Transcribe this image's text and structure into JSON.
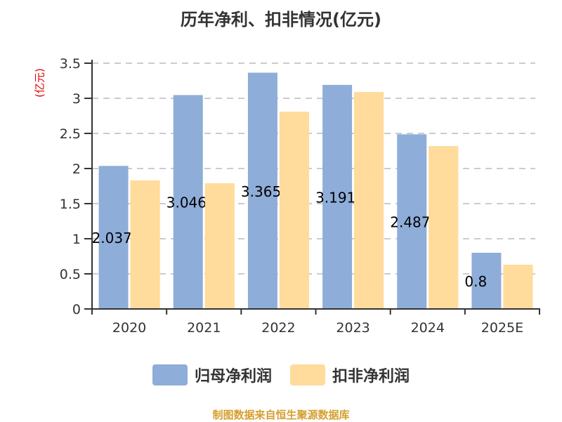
{
  "title": "历年净利、扣非情况(亿元)",
  "footer": "制图数据来自恒生聚源数据库",
  "colors": {
    "series1": "#8EADD9",
    "series2": "#FFDB9C",
    "axis": "#333333",
    "grid": "#cccccc",
    "ylabel": "#e00000",
    "footer": "#d4a030"
  },
  "legend": [
    {
      "label": "归母净利润",
      "color": "#8EADD9"
    },
    {
      "label": "扣非净利润",
      "color": "#FFDB9C"
    }
  ],
  "chart_data": {
    "type": "bar",
    "title": "历年净利、扣非情况(亿元)",
    "xlabel": "",
    "ylabel": "(亿元)",
    "categories": [
      "2020",
      "2021",
      "2022",
      "2023",
      "2024",
      "2025E"
    ],
    "series": [
      {
        "name": "归母净利润",
        "values": [
          2.037,
          3.046,
          3.365,
          3.191,
          2.487,
          0.8
        ],
        "labels": [
          "2.037",
          "3.046",
          "3.365",
          "3.191",
          "2.487",
          "0.8"
        ]
      },
      {
        "name": "扣非净利润",
        "values": [
          1.83,
          1.79,
          2.81,
          3.09,
          2.32,
          0.63
        ]
      }
    ],
    "yticks": [
      "0",
      "0.5",
      "1",
      "1.5",
      "2",
      "2.5",
      "3",
      "3.5"
    ],
    "ylim": [
      0,
      3.5
    ],
    "grid": true,
    "grid_style": "dashed",
    "legend_position": "bottom"
  }
}
